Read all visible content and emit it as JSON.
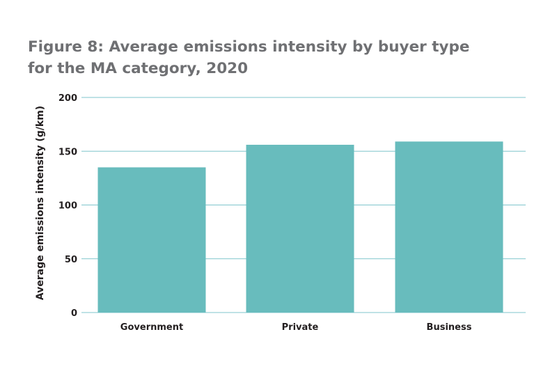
{
  "title_lines": [
    "Figure 8: Average emissions intensity by buyer type",
    "for the MA category, 2020"
  ],
  "chart_data": {
    "type": "bar",
    "title": "Figure 8: Average emissions intensity by buyer type for the MA category, 2020",
    "xlabel": "",
    "ylabel": "Average emissions intensity (g/km)",
    "categories": [
      "Government",
      "Private",
      "Business"
    ],
    "values": [
      135,
      156,
      159
    ],
    "ylim": [
      0,
      200
    ],
    "yticks": [
      0,
      50,
      100,
      150,
      200
    ],
    "grid": true,
    "legend": "none",
    "colors": {
      "bar": "#68bcbd",
      "grid": "#7fc6cc",
      "text": "#231f20",
      "title": "#6f7073"
    }
  }
}
